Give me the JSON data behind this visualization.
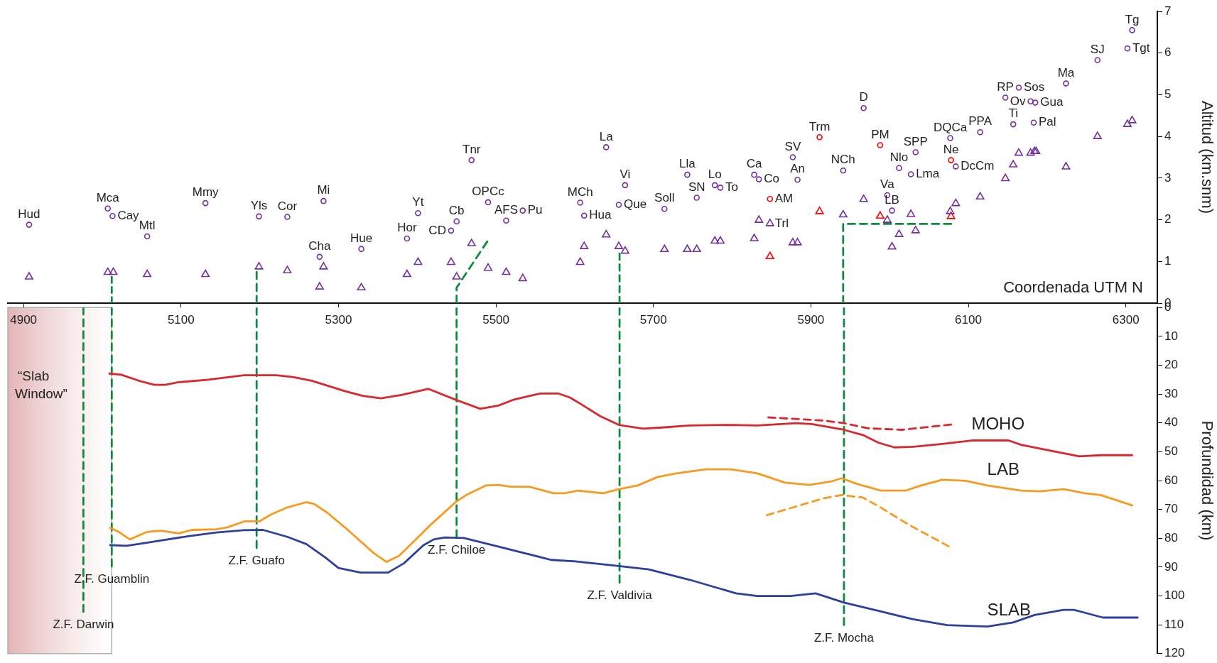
{
  "chart_data": [
    {
      "type": "scatter",
      "xlabel": "Coordenada UTM N",
      "ylabel": "Altitud (km.snm)",
      "tick_labels": "y",
      "xlim": [
        4880,
        6340
      ],
      "xticks": [
        4900,
        5100,
        5300,
        5500,
        5700,
        5900,
        6100,
        6300
      ],
      "ylim": [
        0,
        7
      ],
      "yticks": [
        0,
        1,
        2,
        3,
        4,
        5,
        6,
        7
      ],
      "series": [
        {
          "type": "scatter",
          "marker": "circle",
          "color": "#7030a0",
          "x": [
            4907,
            5007,
            5013,
            5057,
            5131,
            5199,
            5235,
            5281,
            5276,
            5329,
            5387,
            5401,
            5443,
            5450,
            5469,
            5490,
            5513,
            5534,
            5607,
            5612,
            5640,
            5656,
            5664,
            5714,
            5743,
            5755,
            5778,
            5785,
            5828,
            5834,
            5877,
            5883,
            5967,
            5941,
            6012,
            6033,
            6027,
            5997,
            6003,
            6077,
            6084,
            6115,
            6157,
            6147,
            6164,
            6179,
            6185,
            6183,
            6224,
            6264,
            6302,
            6308
          ],
          "values": [
            1.88,
            2.27,
            2.09,
            1.6,
            2.4,
            2.08,
            2.07,
            2.45,
            1.11,
            1.3,
            1.55,
            2.16,
            1.74,
            1.96,
            3.43,
            2.42,
            1.98,
            2.22,
            2.41,
            2.1,
            3.74,
            2.36,
            2.83,
            2.26,
            3.08,
            2.53,
            2.83,
            2.77,
            3.08,
            2.97,
            3.5,
            2.96,
            4.68,
            3.18,
            3.24,
            3.62,
            3.09,
            2.59,
            2.22,
            3.96,
            3.28,
            4.1,
            4.29,
            4.93,
            5.17,
            4.84,
            4.81,
            4.33,
            5.27,
            5.83,
            6.11,
            6.55
          ]
        },
        {
          "type": "scatter",
          "marker": "circle",
          "color": "#ff0000",
          "x": [
            5848,
            5911,
            5988,
            6078
          ],
          "values": [
            2.5,
            3.98,
            3.79,
            3.43
          ]
        },
        {
          "type": "scatter",
          "marker": "triangle",
          "color": "#7030a0",
          "x": [
            4907,
            5007,
            5014,
            5057,
            5131,
            5199,
            5235,
            5281,
            5276,
            5329,
            5387,
            5401,
            5443,
            5450,
            5469,
            5490,
            5513,
            5534,
            5607,
            5612,
            5640,
            5656,
            5664,
            5714,
            5743,
            5755,
            5778,
            5785,
            5828,
            5834,
            5848,
            5877,
            5883,
            5941,
            5967,
            5997,
            6003,
            6012,
            6027,
            6033,
            6077,
            6084,
            6115,
            6147,
            6157,
            6164,
            6179,
            6184,
            6186,
            6224,
            6264,
            6302,
            6308
          ],
          "values": [
            0.63,
            0.74,
            0.74,
            0.69,
            0.69,
            0.87,
            0.78,
            0.87,
            0.39,
            0.37,
            0.69,
            0.98,
            0.98,
            0.63,
            1.43,
            0.84,
            0.74,
            0.59,
            0.98,
            1.36,
            1.64,
            1.36,
            1.25,
            1.29,
            1.29,
            1.29,
            1.49,
            1.49,
            1.55,
            1.99,
            1.91,
            1.45,
            1.45,
            2.12,
            2.49,
            1.99,
            1.35,
            1.65,
            2.13,
            1.74,
            2.2,
            2.39,
            2.55,
            2.99,
            3.32,
            3.6,
            3.6,
            3.64,
            3.64,
            3.27,
            4.0,
            4.29,
            4.38
          ]
        },
        {
          "type": "scatter",
          "marker": "triangle",
          "color": "#ff0000",
          "x": [
            5848,
            5911,
            5988,
            6078
          ],
          "values": [
            1.12,
            2.2,
            2.09,
            2.08
          ]
        },
        {
          "type": "line",
          "line_style": "dashed",
          "color": "#0f8a3c",
          "x": [
            5012,
            5012
          ],
          "values": [
            0,
            0.63
          ]
        },
        {
          "type": "line",
          "line_style": "dashed",
          "color": "#0f8a3c",
          "x": [
            5196,
            5196
          ],
          "values": [
            0,
            0.75
          ]
        },
        {
          "type": "line",
          "line_style": "dashed",
          "color": "#0f8a3c",
          "x": [
            5450,
            5450,
            5489
          ],
          "values": [
            0,
            0.37,
            1.48
          ]
        },
        {
          "type": "line",
          "line_style": "dashed",
          "color": "#0f8a3c",
          "x": [
            5657,
            5657
          ],
          "values": [
            0,
            1.19
          ]
        },
        {
          "type": "line",
          "line_style": "dashed",
          "color": "#0f8a3c",
          "x": [
            5941,
            5941,
            6078
          ],
          "values": [
            0,
            1.9,
            1.9
          ]
        }
      ],
      "annotations": [
        {
          "text": "Hud",
          "x": 4907,
          "y": 1.88
        },
        {
          "text": "Mca",
          "x": 5007,
          "y": 2.27
        },
        {
          "text": "Cay",
          "x": 5013,
          "y": 2.09
        },
        {
          "text": "Mtl",
          "x": 5057,
          "y": 1.6
        },
        {
          "text": "Mmy",
          "x": 5131,
          "y": 2.4
        },
        {
          "text": "Yls",
          "x": 5199,
          "y": 2.08
        },
        {
          "text": "Cor",
          "x": 5235,
          "y": 2.07
        },
        {
          "text": "Mi",
          "x": 5281,
          "y": 2.45
        },
        {
          "text": "Cha",
          "x": 5276,
          "y": 1.11
        },
        {
          "text": "Hue",
          "x": 5329,
          "y": 1.3
        },
        {
          "text": "Hor",
          "x": 5387,
          "y": 1.55
        },
        {
          "text": "Yt",
          "x": 5401,
          "y": 2.16
        },
        {
          "text": "CD",
          "x": 5443,
          "y": 1.74
        },
        {
          "text": "Cb",
          "x": 5450,
          "y": 1.96
        },
        {
          "text": "Tnr",
          "x": 5469,
          "y": 3.43
        },
        {
          "text": "OPCc",
          "x": 5490,
          "y": 2.42
        },
        {
          "text": "AFS",
          "x": 5513,
          "y": 1.98
        },
        {
          "text": "Pu",
          "x": 5534,
          "y": 2.22
        },
        {
          "text": "MCh",
          "x": 5607,
          "y": 2.41
        },
        {
          "text": "Hua",
          "x": 5612,
          "y": 2.1
        },
        {
          "text": "La",
          "x": 5640,
          "y": 3.74
        },
        {
          "text": "Que",
          "x": 5656,
          "y": 2.36
        },
        {
          "text": "Vi",
          "x": 5664,
          "y": 2.83
        },
        {
          "text": "Soll",
          "x": 5714,
          "y": 2.26
        },
        {
          "text": "Lla",
          "x": 5743,
          "y": 3.08
        },
        {
          "text": "SN",
          "x": 5755,
          "y": 2.53
        },
        {
          "text": "Lo",
          "x": 5778,
          "y": 2.83
        },
        {
          "text": "To",
          "x": 5785,
          "y": 2.77
        },
        {
          "text": "Ca",
          "x": 5828,
          "y": 3.08
        },
        {
          "text": "Co",
          "x": 5834,
          "y": 2.97
        },
        {
          "text": "AM",
          "x": 5848,
          "y": 2.5
        },
        {
          "text": "Trl",
          "x": 5848,
          "y": 1.91
        },
        {
          "text": "SV",
          "x": 5877,
          "y": 3.5
        },
        {
          "text": "An",
          "x": 5883,
          "y": 2.96
        },
        {
          "text": "Trm",
          "x": 5911,
          "y": 3.98
        },
        {
          "text": "D",
          "x": 5967,
          "y": 4.68
        },
        {
          "text": "NCh",
          "x": 5941,
          "y": 3.18
        },
        {
          "text": "PM",
          "x": 5988,
          "y": 3.79
        },
        {
          "text": "Nlo",
          "x": 6012,
          "y": 3.24
        },
        {
          "text": "SPP",
          "x": 6033,
          "y": 3.62
        },
        {
          "text": "Lma",
          "x": 6027,
          "y": 3.09
        },
        {
          "text": "Va",
          "x": 5997,
          "y": 2.59
        },
        {
          "text": "LB",
          "x": 6003,
          "y": 2.22
        },
        {
          "text": "DQCa",
          "x": 6077,
          "y": 3.96
        },
        {
          "text": "Ne",
          "x": 6078,
          "y": 3.43
        },
        {
          "text": "DcCm",
          "x": 6084,
          "y": 3.28
        },
        {
          "text": "PPA",
          "x": 6115,
          "y": 4.1
        },
        {
          "text": "Ti",
          "x": 6157,
          "y": 4.29
        },
        {
          "text": "RP",
          "x": 6147,
          "y": 4.93
        },
        {
          "text": "Sos",
          "x": 6164,
          "y": 5.17
        },
        {
          "text": "Ov",
          "x": 6179,
          "y": 4.84
        },
        {
          "text": "Gua",
          "x": 6185,
          "y": 4.81
        },
        {
          "text": "Pal",
          "x": 6183,
          "y": 4.33
        },
        {
          "text": "Ma",
          "x": 6224,
          "y": 5.27
        },
        {
          "text": "SJ",
          "x": 6264,
          "y": 5.83
        },
        {
          "text": "Tgt",
          "x": 6302,
          "y": 6.11
        },
        {
          "text": "Tg",
          "x": 6308,
          "y": 6.55
        }
      ]
    },
    {
      "type": "line",
      "ylabel": "Profundidad (km)",
      "xlim": [
        4880,
        6340
      ],
      "xticks": [
        4900,
        5100,
        5300,
        5500,
        5700,
        5900,
        6100,
        6300
      ],
      "ylim": [
        120,
        0
      ],
      "yticks": [
        0,
        10,
        20,
        30,
        40,
        50,
        60,
        70,
        80,
        90,
        100,
        110,
        120
      ],
      "bands": [
        {
          "axis": "x",
          "from": 4880,
          "to": 5012,
          "label": "“Slab Window”",
          "color": "#e3b4b6"
        }
      ],
      "series": [
        {
          "name": "MOHO",
          "color": "#d7282e",
          "x": [
            5009,
            5024,
            5049,
            5066,
            5080,
            5097,
            5135,
            5156,
            5180,
            5221,
            5242,
            5266,
            5307,
            5332,
            5354,
            5380,
            5414,
            5450,
            5480,
            5503,
            5522,
            5556,
            5579,
            5594,
            5611,
            5632,
            5656,
            5687,
            5711,
            5746,
            5798,
            5832,
            5881,
            5901,
            5942,
            5966,
            5986,
            6006,
            6030,
            6067,
            6104,
            6151,
            6167,
            6218,
            6241,
            6268,
            6308
          ],
          "values": [
            22.9,
            23.3,
            25.6,
            26.8,
            26.8,
            25.9,
            25.0,
            24.3,
            23.5,
            23.5,
            24.1,
            25.4,
            28.9,
            30.7,
            31.5,
            30.3,
            28.2,
            32.1,
            35.1,
            34.0,
            32.0,
            29.8,
            29.8,
            31.2,
            34.0,
            37.6,
            40.7,
            42.0,
            41.6,
            40.9,
            40.7,
            40.9,
            40.1,
            40.4,
            42.4,
            44.2,
            46.9,
            48.5,
            48.3,
            47.3,
            46.1,
            46.1,
            47.6,
            50.4,
            51.6,
            51.2,
            51.2
          ]
        },
        {
          "name": "LAB",
          "color": "#f79a22",
          "x": [
            5010,
            5021,
            5035,
            5057,
            5074,
            5097,
            5114,
            5145,
            5159,
            5181,
            5200,
            5214,
            5235,
            5259,
            5269,
            5286,
            5311,
            5345,
            5361,
            5377,
            5401,
            5418,
            5450,
            5463,
            5487,
            5503,
            5518,
            5542,
            5573,
            5587,
            5604,
            5636,
            5656,
            5680,
            5705,
            5729,
            5767,
            5798,
            5832,
            5867,
            5898,
            5926,
            5939,
            5959,
            5989,
            6020,
            6040,
            6067,
            6097,
            6124,
            6167,
            6191,
            6221,
            6248,
            6268,
            6308
          ],
          "values": [
            76.4,
            77.8,
            80.4,
            77.8,
            77.4,
            78.3,
            77.1,
            76.9,
            76.2,
            74.1,
            74.1,
            71.8,
            69.3,
            67.5,
            68.1,
            71.2,
            76.9,
            85.2,
            88.2,
            86.1,
            79.7,
            75.1,
            67.2,
            64.9,
            61.7,
            61.5,
            62.1,
            62.1,
            64.4,
            64.4,
            63.5,
            64.4,
            63.0,
            61.7,
            58.8,
            57.5,
            56.1,
            56.1,
            57.5,
            60.7,
            61.5,
            60.3,
            59.2,
            61.2,
            63.5,
            63.5,
            61.7,
            59.7,
            60.1,
            61.7,
            63.5,
            63.7,
            63.0,
            64.4,
            65.0,
            68.6
          ]
        },
        {
          "name": "SLAB",
          "color": "#2e3f9e",
          "x": [
            5010,
            5031,
            5062,
            5111,
            5145,
            5180,
            5204,
            5235,
            5259,
            5283,
            5300,
            5328,
            5363,
            5383,
            5408,
            5421,
            5435,
            5459,
            5508,
            5570,
            5601,
            5656,
            5694,
            5746,
            5805,
            5832,
            5874,
            5906,
            5942,
            5989,
            6030,
            6073,
            6124,
            6157,
            6184,
            6221,
            6234,
            6271,
            6315
          ],
          "values": [
            82.4,
            82.6,
            81.3,
            79.2,
            78.0,
            77.2,
            77.1,
            79.5,
            82.0,
            86.6,
            90.3,
            91.9,
            91.9,
            88.7,
            82.4,
            80.4,
            79.7,
            79.9,
            83.2,
            87.5,
            88.0,
            89.6,
            90.8,
            94.4,
            99.1,
            100.0,
            100.0,
            99.1,
            102.3,
            105.4,
            108.1,
            110.1,
            110.6,
            109.2,
            106.6,
            104.8,
            104.8,
            107.5,
            107.5
          ]
        },
        {
          "type": "line",
          "line_style": "dashed",
          "color": "#d7282e",
          "x": [
            5846,
            5917,
            5942,
            5973,
            6016,
            6078
          ],
          "values": [
            38.1,
            39.2,
            40.1,
            41.9,
            42.4,
            40.6
          ]
        },
        {
          "type": "line",
          "line_style": "dashed",
          "color": "#f79a22",
          "x": [
            5844,
            5917,
            5939,
            5966,
            5986,
            6023,
            6075
          ],
          "values": [
            72.0,
            66.1,
            65.0,
            65.9,
            68.9,
            75.1,
            82.8
          ]
        },
        {
          "type": "line",
          "line_style": "dashed",
          "color": "#0f8a3c",
          "x": [
            4976,
            4976
          ],
          "values": [
            0,
            105.5
          ]
        },
        {
          "type": "line",
          "line_style": "dashed",
          "color": "#0f8a3c",
          "x": [
            5012,
            5012
          ],
          "values": [
            0,
            89.8
          ]
        },
        {
          "type": "line",
          "line_style": "dashed",
          "color": "#0f8a3c",
          "x": [
            5196,
            5196
          ],
          "values": [
            0,
            83.4
          ]
        },
        {
          "type": "line",
          "line_style": "dashed",
          "color": "#0f8a3c",
          "x": [
            5450,
            5450
          ],
          "values": [
            0,
            79.7
          ]
        },
        {
          "type": "line",
          "line_style": "dashed",
          "color": "#0f8a3c",
          "x": [
            5657,
            5657
          ],
          "values": [
            0,
            95.4
          ]
        },
        {
          "type": "line",
          "line_style": "dashed",
          "color": "#0f8a3c",
          "x": [
            5942,
            5942
          ],
          "values": [
            0,
            110.1
          ]
        }
      ],
      "annotations": [
        {
          "text": "Z.F. Darwin",
          "x": 4976,
          "y": 105.5
        },
        {
          "text": "Z.F. Guamblin",
          "x": 5012,
          "y": 89.8
        },
        {
          "text": "Z.F. Guafo",
          "x": 5196,
          "y": 83.4
        },
        {
          "text": "Z.F. Chiloe",
          "x": 5450,
          "y": 79.7
        },
        {
          "text": "Z.F. Valdivia",
          "x": 5657,
          "y": 95.4
        },
        {
          "text": "Z.F. Mocha",
          "x": 5942,
          "y": 110.1
        }
      ]
    }
  ]
}
